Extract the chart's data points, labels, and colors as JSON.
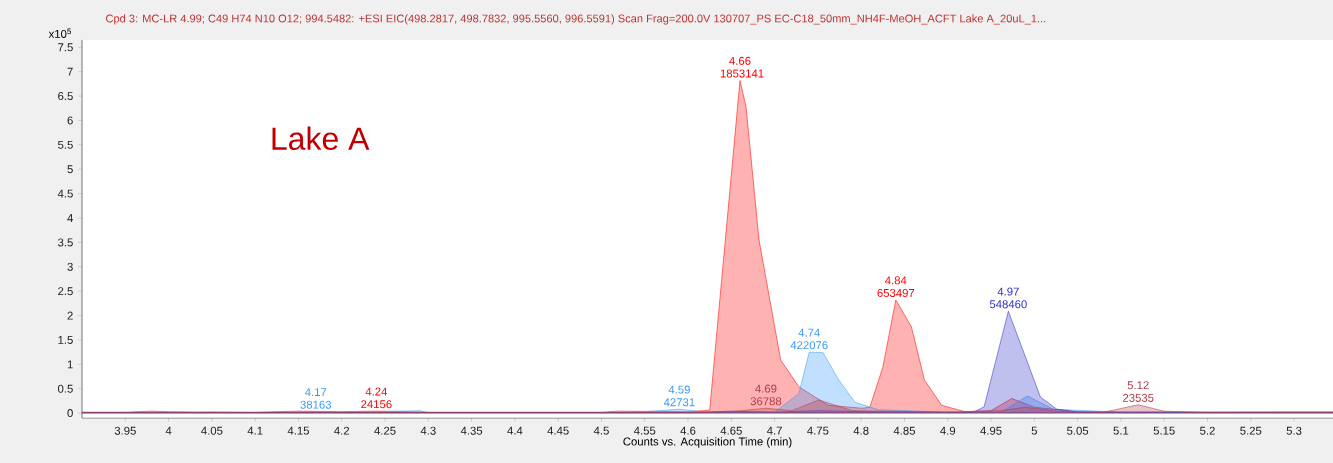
{
  "chart_data": {
    "type": "area",
    "title": "Cpd 3: MC-LR 4.99; C49 H74 N10 O12; 994.5482: +ESI EIC(498.2817, 498.7832, 995.5560, 996.5591) Scan Frag=200.0V 130707_PS EC-C18_50mm_NH4F-MeOH_ACFT Lake A_20uL_1...",
    "xlabel": "Counts vs. Acquisition Time (min)",
    "ylabel": "x10$^{5}$",
    "annotations": [
      "Lake A",
      {
        "text": "4.17 38163",
        "x": 4.17,
        "y": 0.03
      },
      {
        "text": "4.24 24156",
        "x": 4.24,
        "y": 0.04
      },
      {
        "text": "4.59 42731",
        "x": 4.59,
        "y": 0.08
      },
      {
        "text": "4.66 1853141",
        "x": 4.66,
        "y": 6.82
      },
      {
        "text": "4.69 36788",
        "x": 4.69,
        "y": 0.1
      },
      {
        "text": "4.74 422076",
        "x": 4.74,
        "y": 1.25
      },
      {
        "text": "4.84 653497",
        "x": 4.84,
        "y": 2.32
      },
      {
        "text": "4.97 548460",
        "x": 4.97,
        "y": 2.09
      },
      {
        "text": "5.12 23535",
        "x": 5.12,
        "y": 0.17
      }
    ],
    "xlim": [
      3.9,
      5.345
    ],
    "ylim": [
      -0.1,
      7.65
    ],
    "xticks": [
      3.95,
      4,
      4.05,
      4.1,
      4.15,
      4.2,
      4.25,
      4.3,
      4.35,
      4.4,
      4.45,
      4.5,
      4.55,
      4.6,
      4.65,
      4.7,
      4.75,
      4.8,
      4.85,
      4.9,
      4.95,
      5,
      5.05,
      5.1,
      5.15,
      5.2,
      5.25,
      5.3
    ],
    "yticks": [
      0,
      0.5,
      1,
      1.5,
      2,
      2.5,
      3,
      3.5,
      4,
      4.5,
      5,
      5.5,
      6,
      6.5,
      7,
      7.5
    ],
    "series": [
      {
        "color": "#ff0000",
        "x": [
          3.9,
          3.95,
          3.98,
          4.0,
          4.05,
          4.1,
          4.15,
          4.2,
          4.24,
          4.3,
          4.4,
          4.5,
          4.52,
          4.6,
          4.625,
          4.66,
          4.667,
          4.682,
          4.707,
          4.728,
          4.762,
          4.801,
          4.81,
          4.825,
          4.84,
          4.858,
          4.873,
          4.893,
          4.92,
          4.95,
          4.974,
          5.0,
          5.05,
          5.1,
          5.2,
          5.3,
          5.345
        ],
        "values": [
          0.02,
          0.02,
          0.04,
          0.03,
          0.02,
          0.02,
          0.04,
          0.03,
          0.04,
          0.02,
          0.02,
          0.02,
          0.04,
          0.03,
          0.06,
          6.82,
          6.28,
          3.55,
          1.09,
          0.54,
          0.16,
          0.1,
          0.12,
          0.94,
          2.32,
          1.77,
          0.68,
          0.16,
          0.03,
          0.05,
          0.3,
          0.12,
          0.03,
          0.02,
          0.02,
          0.02,
          0.02
        ]
      },
      {
        "color": "#3399ff",
        "x": [
          3.9,
          4.0,
          4.1,
          4.17,
          4.2,
          4.24,
          4.29,
          4.3,
          4.4,
          4.5,
          4.55,
          4.59,
          4.62,
          4.7,
          4.728,
          4.74,
          4.756,
          4.774,
          4.793,
          4.82,
          4.9,
          4.962,
          4.992,
          5.022,
          5.1,
          5.2,
          5.3,
          5.345
        ],
        "values": [
          0.01,
          0.01,
          0.01,
          0.03,
          0.02,
          0.03,
          0.05,
          0.01,
          0.01,
          0.01,
          0.03,
          0.08,
          0.02,
          0.02,
          0.4,
          1.25,
          1.24,
          0.68,
          0.22,
          0.07,
          0.02,
          0.02,
          0.35,
          0.08,
          0.02,
          0.01,
          0.02,
          0.02
        ]
      },
      {
        "color": "#3030c8",
        "x": [
          3.9,
          4.03,
          4.05,
          4.1,
          4.6,
          4.65,
          4.7,
          4.75,
          4.8,
          4.9,
          4.93,
          4.942,
          4.97,
          5.007,
          5.026,
          5.05,
          5.1,
          5.2,
          5.3,
          5.345
        ],
        "values": [
          0.01,
          0.01,
          0.02,
          0.01,
          0.01,
          0.04,
          0.02,
          0.05,
          0.03,
          0.02,
          0.02,
          0.13,
          2.09,
          0.33,
          0.08,
          0.02,
          0.02,
          0.02,
          0.02,
          0.02
        ]
      },
      {
        "color": "#b03a48",
        "x": [
          3.9,
          4.6,
          4.65,
          4.69,
          4.72,
          4.751,
          4.79,
          4.9,
          4.96,
          4.99,
          5.03,
          5.08,
          5.12,
          5.15,
          5.2,
          5.345
        ],
        "values": [
          0.01,
          0.01,
          0.03,
          0.1,
          0.05,
          0.27,
          0.05,
          0.02,
          0.05,
          0.12,
          0.03,
          0.02,
          0.17,
          0.04,
          0.01,
          0.01
        ]
      }
    ]
  }
}
